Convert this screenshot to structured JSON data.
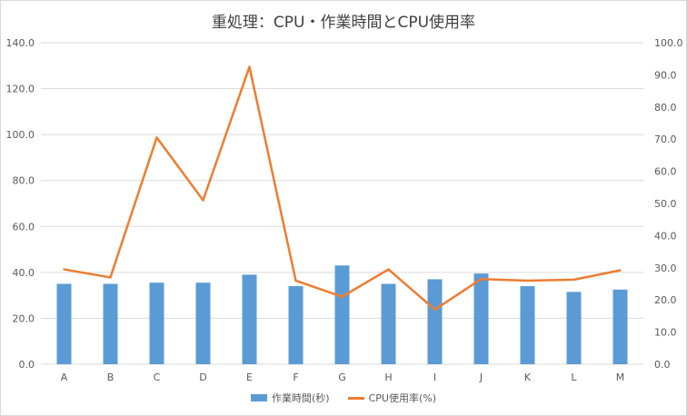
{
  "chart_data": {
    "type": "bar+line",
    "title": "重処理：CPU・作業時間とCPU使用率",
    "categories": [
      "A",
      "B",
      "C",
      "D",
      "E",
      "F",
      "G",
      "H",
      "I",
      "J",
      "K",
      "L",
      "M"
    ],
    "series": [
      {
        "name": "作業時間(秒)",
        "type": "bar",
        "axis": "left",
        "color": "#5b9bd5",
        "values": [
          35,
          35,
          35.5,
          35.5,
          39,
          34,
          43,
          35,
          37,
          39.5,
          34,
          31.5,
          32.5
        ]
      },
      {
        "name": "CPU使用率(%)",
        "type": "line",
        "axis": "right",
        "color": "#ed7d31",
        "values": [
          29.5,
          27,
          70.5,
          51,
          92.5,
          26,
          21,
          29.5,
          17,
          26.5,
          26,
          26.3,
          29.2
        ]
      }
    ],
    "y_left": {
      "lim": [
        0,
        140
      ],
      "ticks": [
        "0.0",
        "20.0",
        "40.0",
        "60.0",
        "80.0",
        "100.0",
        "120.0",
        "140.0"
      ]
    },
    "y_right": {
      "lim": [
        0,
        100
      ],
      "ticks": [
        "0.0",
        "10.0",
        "20.0",
        "30.0",
        "40.0",
        "50.0",
        "60.0",
        "70.0",
        "80.0",
        "90.0",
        "100.0"
      ]
    },
    "grid": true,
    "legend_position": "bottom"
  }
}
